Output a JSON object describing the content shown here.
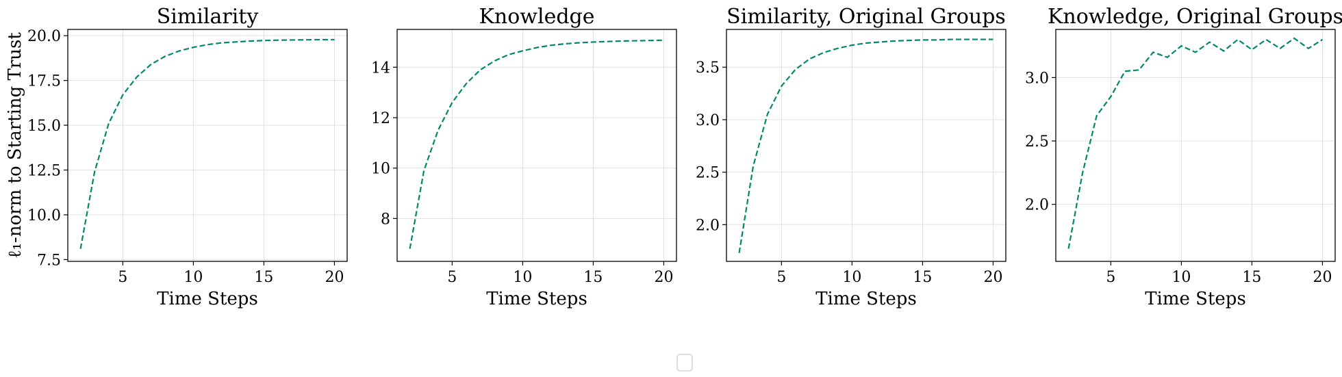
{
  "line_color": "#00876c",
  "legend_entries": [],
  "chart_data": [
    {
      "type": "line",
      "title": "Similarity",
      "xlabel": "Time Steps",
      "ylabel": "ℓ₁-norm to Starting Trust",
      "xlim": [
        1.1,
        20.9
      ],
      "ylim": [
        7.4,
        20.35
      ],
      "xticks": [
        5,
        10,
        15,
        20
      ],
      "yticks": [
        7.5,
        10.0,
        12.5,
        15.0,
        17.5,
        20.0
      ],
      "ytick_labels": [
        "7.5",
        "10.0",
        "12.5",
        "15.0",
        "17.5",
        "20.0"
      ],
      "grid": true,
      "series": [
        {
          "x": [
            2,
            3,
            4,
            5,
            6,
            7,
            8,
            9,
            10,
            11,
            12,
            13,
            14,
            15,
            16,
            17,
            18,
            19,
            20
          ],
          "y": [
            8.1,
            12.4,
            15.1,
            16.7,
            17.7,
            18.4,
            18.85,
            19.15,
            19.35,
            19.5,
            19.6,
            19.65,
            19.7,
            19.73,
            19.75,
            19.76,
            19.77,
            19.78,
            19.78
          ]
        }
      ]
    },
    {
      "type": "line",
      "title": "Knowledge",
      "xlabel": "Time Steps",
      "ylabel": "",
      "xlim": [
        1.1,
        20.9
      ],
      "ylim": [
        6.3,
        15.5
      ],
      "xticks": [
        5,
        10,
        15,
        20
      ],
      "yticks": [
        8,
        10,
        12,
        14
      ],
      "ytick_labels": [
        "8",
        "10",
        "12",
        "14"
      ],
      "grid": true,
      "series": [
        {
          "x": [
            2,
            3,
            4,
            5,
            6,
            7,
            8,
            9,
            10,
            11,
            12,
            13,
            14,
            15,
            16,
            17,
            18,
            19,
            20
          ],
          "y": [
            6.8,
            9.9,
            11.5,
            12.6,
            13.35,
            13.9,
            14.25,
            14.5,
            14.65,
            14.78,
            14.87,
            14.93,
            14.97,
            15.0,
            15.02,
            15.04,
            15.05,
            15.06,
            15.07
          ]
        }
      ]
    },
    {
      "type": "line",
      "title": "Similarity, Original Groups",
      "xlabel": "Time Steps",
      "ylabel": "",
      "xlim": [
        1.1,
        20.9
      ],
      "ylim": [
        1.65,
        3.86
      ],
      "xticks": [
        5,
        10,
        15,
        20
      ],
      "yticks": [
        2.0,
        2.5,
        3.0,
        3.5
      ],
      "ytick_labels": [
        "2.0",
        "2.5",
        "3.0",
        "3.5"
      ],
      "grid": true,
      "series": [
        {
          "x": [
            2,
            3,
            4,
            5,
            6,
            7,
            8,
            9,
            10,
            11,
            12,
            13,
            14,
            15,
            16,
            17,
            18,
            19,
            20
          ],
          "y": [
            1.73,
            2.56,
            3.05,
            3.32,
            3.48,
            3.58,
            3.64,
            3.68,
            3.71,
            3.73,
            3.74,
            3.75,
            3.755,
            3.76,
            3.76,
            3.765,
            3.765,
            3.765,
            3.765
          ]
        }
      ]
    },
    {
      "type": "line",
      "title": "Knowledge, Original Groups",
      "xlabel": "Time Steps",
      "ylabel": "",
      "xlim": [
        1.1,
        20.9
      ],
      "ylim": [
        1.55,
        3.38
      ],
      "xticks": [
        5,
        10,
        15,
        20
      ],
      "yticks": [
        2.0,
        2.5,
        3.0
      ],
      "ytick_labels": [
        "2.0",
        "2.5",
        "3.0"
      ],
      "grid": true,
      "series": [
        {
          "x": [
            2,
            3,
            4,
            5,
            6,
            7,
            8,
            9,
            10,
            11,
            12,
            13,
            14,
            15,
            16,
            17,
            18,
            19,
            20
          ],
          "y": [
            1.65,
            2.25,
            2.7,
            2.85,
            3.05,
            3.06,
            3.2,
            3.16,
            3.25,
            3.2,
            3.28,
            3.21,
            3.3,
            3.22,
            3.3,
            3.23,
            3.31,
            3.23,
            3.3
          ]
        }
      ]
    }
  ]
}
